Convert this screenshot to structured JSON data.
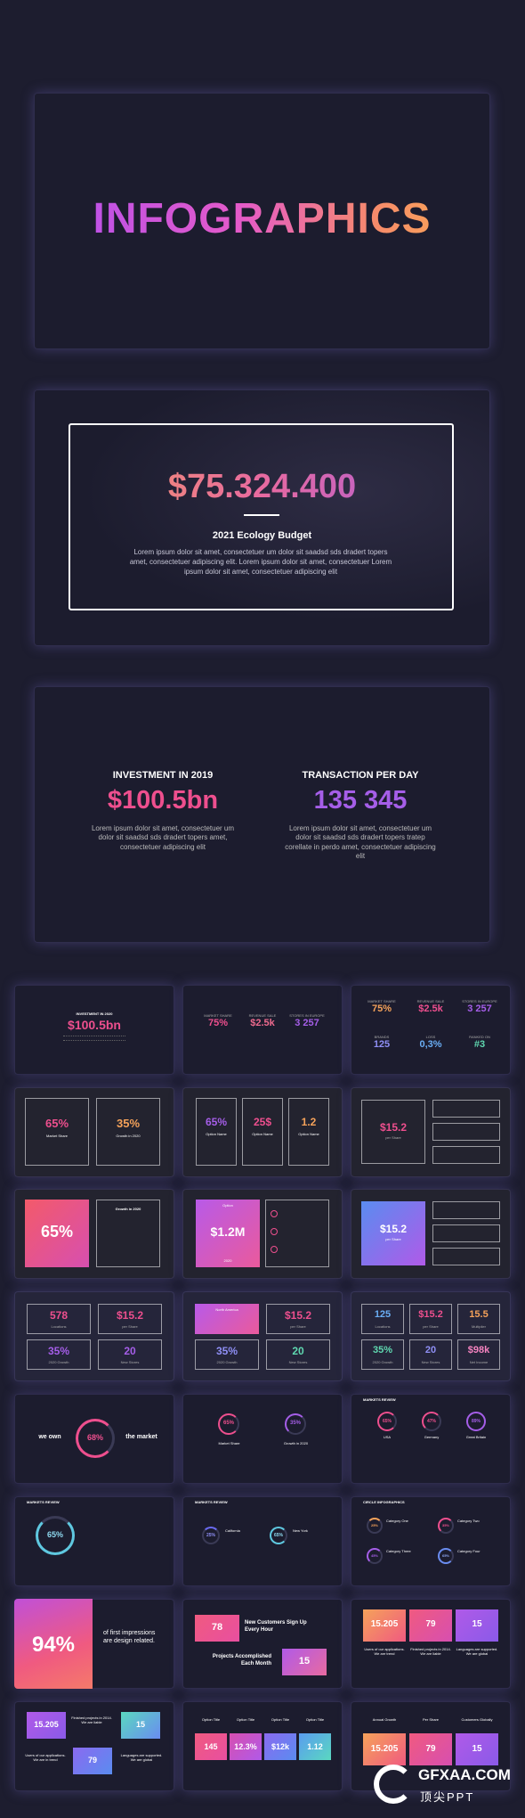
{
  "slide1": {
    "title": "INFOGRAPHICS"
  },
  "slide2": {
    "amount": "$75.324.400",
    "subtitle": "2021 Ecology Budget",
    "body": "Lorem ipsum dolor sit amet, consectetuer um dolor sit saadsd sds dradert topers amet, consectetuer adipiscing elit. Lorem ipsum dolor sit amet, consectetuer Lorem ipsum dolor sit amet, consectetuer adipiscing elit"
  },
  "slide3": {
    "left": {
      "heading": "INVESTMENT IN 2019",
      "value": "$100.5bn",
      "body": "Lorem ipsum dolor sit amet, consectetuer um dolor sit saadsd sds dradert topers amet, consectetuer adipiscing elit"
    },
    "right": {
      "heading": "TRANSACTION PER DAY",
      "value": "135 345",
      "body": "Lorem ipsum dolor sit amet, consectetuer um dolor sit saadsd sds dradert topers tratep corellate in perdo amet, consectetuer adipiscing elit"
    }
  },
  "thumbs": {
    "r1": {
      "a_head": "INVESTMENT IN 2020",
      "a_val": "$100.5bn",
      "b": [
        "75%",
        "$2.5k",
        "3 257"
      ],
      "b_labels": [
        "MARKET SHARE",
        "REVENUE SALE",
        "STORES IN EUROPE"
      ],
      "c": [
        "75%",
        "$2.5k",
        "3 257",
        "125",
        "0,3%",
        "#3"
      ],
      "c_labels": [
        "MARKET SHARE",
        "REVENUE SALE",
        "STORES IN EUROPE",
        "BRANDS",
        "LOSS",
        "RANKED ON"
      ]
    },
    "r2": {
      "a": [
        "65%",
        "35%"
      ],
      "a_labels": [
        "Market Share",
        "Growth in 2020"
      ],
      "b": [
        "65%",
        "25$",
        "1.2"
      ],
      "b_labels": [
        "Option Name",
        "Option Name",
        "Option Name"
      ],
      "c_val": "$15.2",
      "c_label": "per Share"
    },
    "r3": {
      "a_val": "65%",
      "a_label": "Growth in 2020",
      "b_head": "Option",
      "b_val": "$1.2M",
      "b_foot": "2020",
      "c_val": "$15.2",
      "c_label": "per Share"
    },
    "r4": {
      "a": [
        "578",
        "$15.2",
        "35%",
        "20"
      ],
      "a_labels": [
        "Locations",
        "per Share",
        "2020 Growth",
        "New Stores"
      ],
      "b_head": "North America",
      "b": [
        "$15.2",
        "35%",
        "20"
      ],
      "b_labels": [
        "per Share",
        "2020 Growth",
        "New Stores"
      ],
      "c": [
        "125",
        "$15.2",
        "15.5",
        "35%",
        "20",
        "$98k"
      ],
      "c_labels": [
        "Locations",
        "per Share",
        "Multiplier",
        "2020 Growth",
        "New Stores",
        "Net Income"
      ]
    },
    "r5": {
      "a_left": "we own",
      "a_pct": "68%",
      "a_right": "the market",
      "b": [
        "65%",
        "35%"
      ],
      "b_labels": [
        "Market Share",
        "Growth in 2020"
      ],
      "c_head": "MARKETS REVIEW",
      "c": [
        "65%",
        "47%",
        "89%"
      ],
      "c_labels": [
        "USA",
        "Germany",
        "Great Britain"
      ]
    },
    "r6": {
      "a_head": "MARKETS REVIEW",
      "a_pct": "65%",
      "b_head": "MARKETS REVIEW",
      "b": [
        "25%",
        "65%"
      ],
      "b_labels": [
        "California",
        "New York"
      ],
      "c_head": "CIRCLE INFOGRAPHICS",
      "c": [
        "25%",
        "35%",
        "45%",
        "65%"
      ],
      "c_labels": [
        "Category One",
        "Category Two",
        "Category Three",
        "Category Four"
      ]
    },
    "r7": {
      "a_val": "94%",
      "a_text": "of first impressions are design related.",
      "b_val1": "78",
      "b_text1": "New Customers Sign Up Every Hour",
      "b_text2": "Projects Accomplished Each Month",
      "b_val2": "15",
      "c": [
        "15.205",
        "79",
        "15"
      ],
      "c_labels": [
        "Users of our applications. We are trend",
        "Finished projects in 2014. We are liable",
        "Languages are supported. We are global"
      ]
    },
    "r8": {
      "a": [
        "15.205",
        "15",
        "79"
      ],
      "a_labels": [
        "Finished projects in 2014. We are liable",
        "Users of our applications. We are in trend",
        "Languages are supported. We are global"
      ],
      "b_heads": [
        "Option Title",
        "Option Title",
        "Option Title",
        "Option Title"
      ],
      "b": [
        "145",
        "12.3%",
        "$12k",
        "1.12"
      ],
      "c_heads": [
        "Annual Growth",
        "Per Share",
        "Customers Globally"
      ],
      "c": [
        "15.205",
        "79",
        "15"
      ]
    }
  },
  "watermark": {
    "logo": "GFXAA.COM",
    "sub": "顶尖PPT"
  },
  "colors": {
    "pink": "#ee4f8e",
    "purple": "#a55ee8",
    "orange": "#f5a25a",
    "bg": "#1c1c2e"
  }
}
